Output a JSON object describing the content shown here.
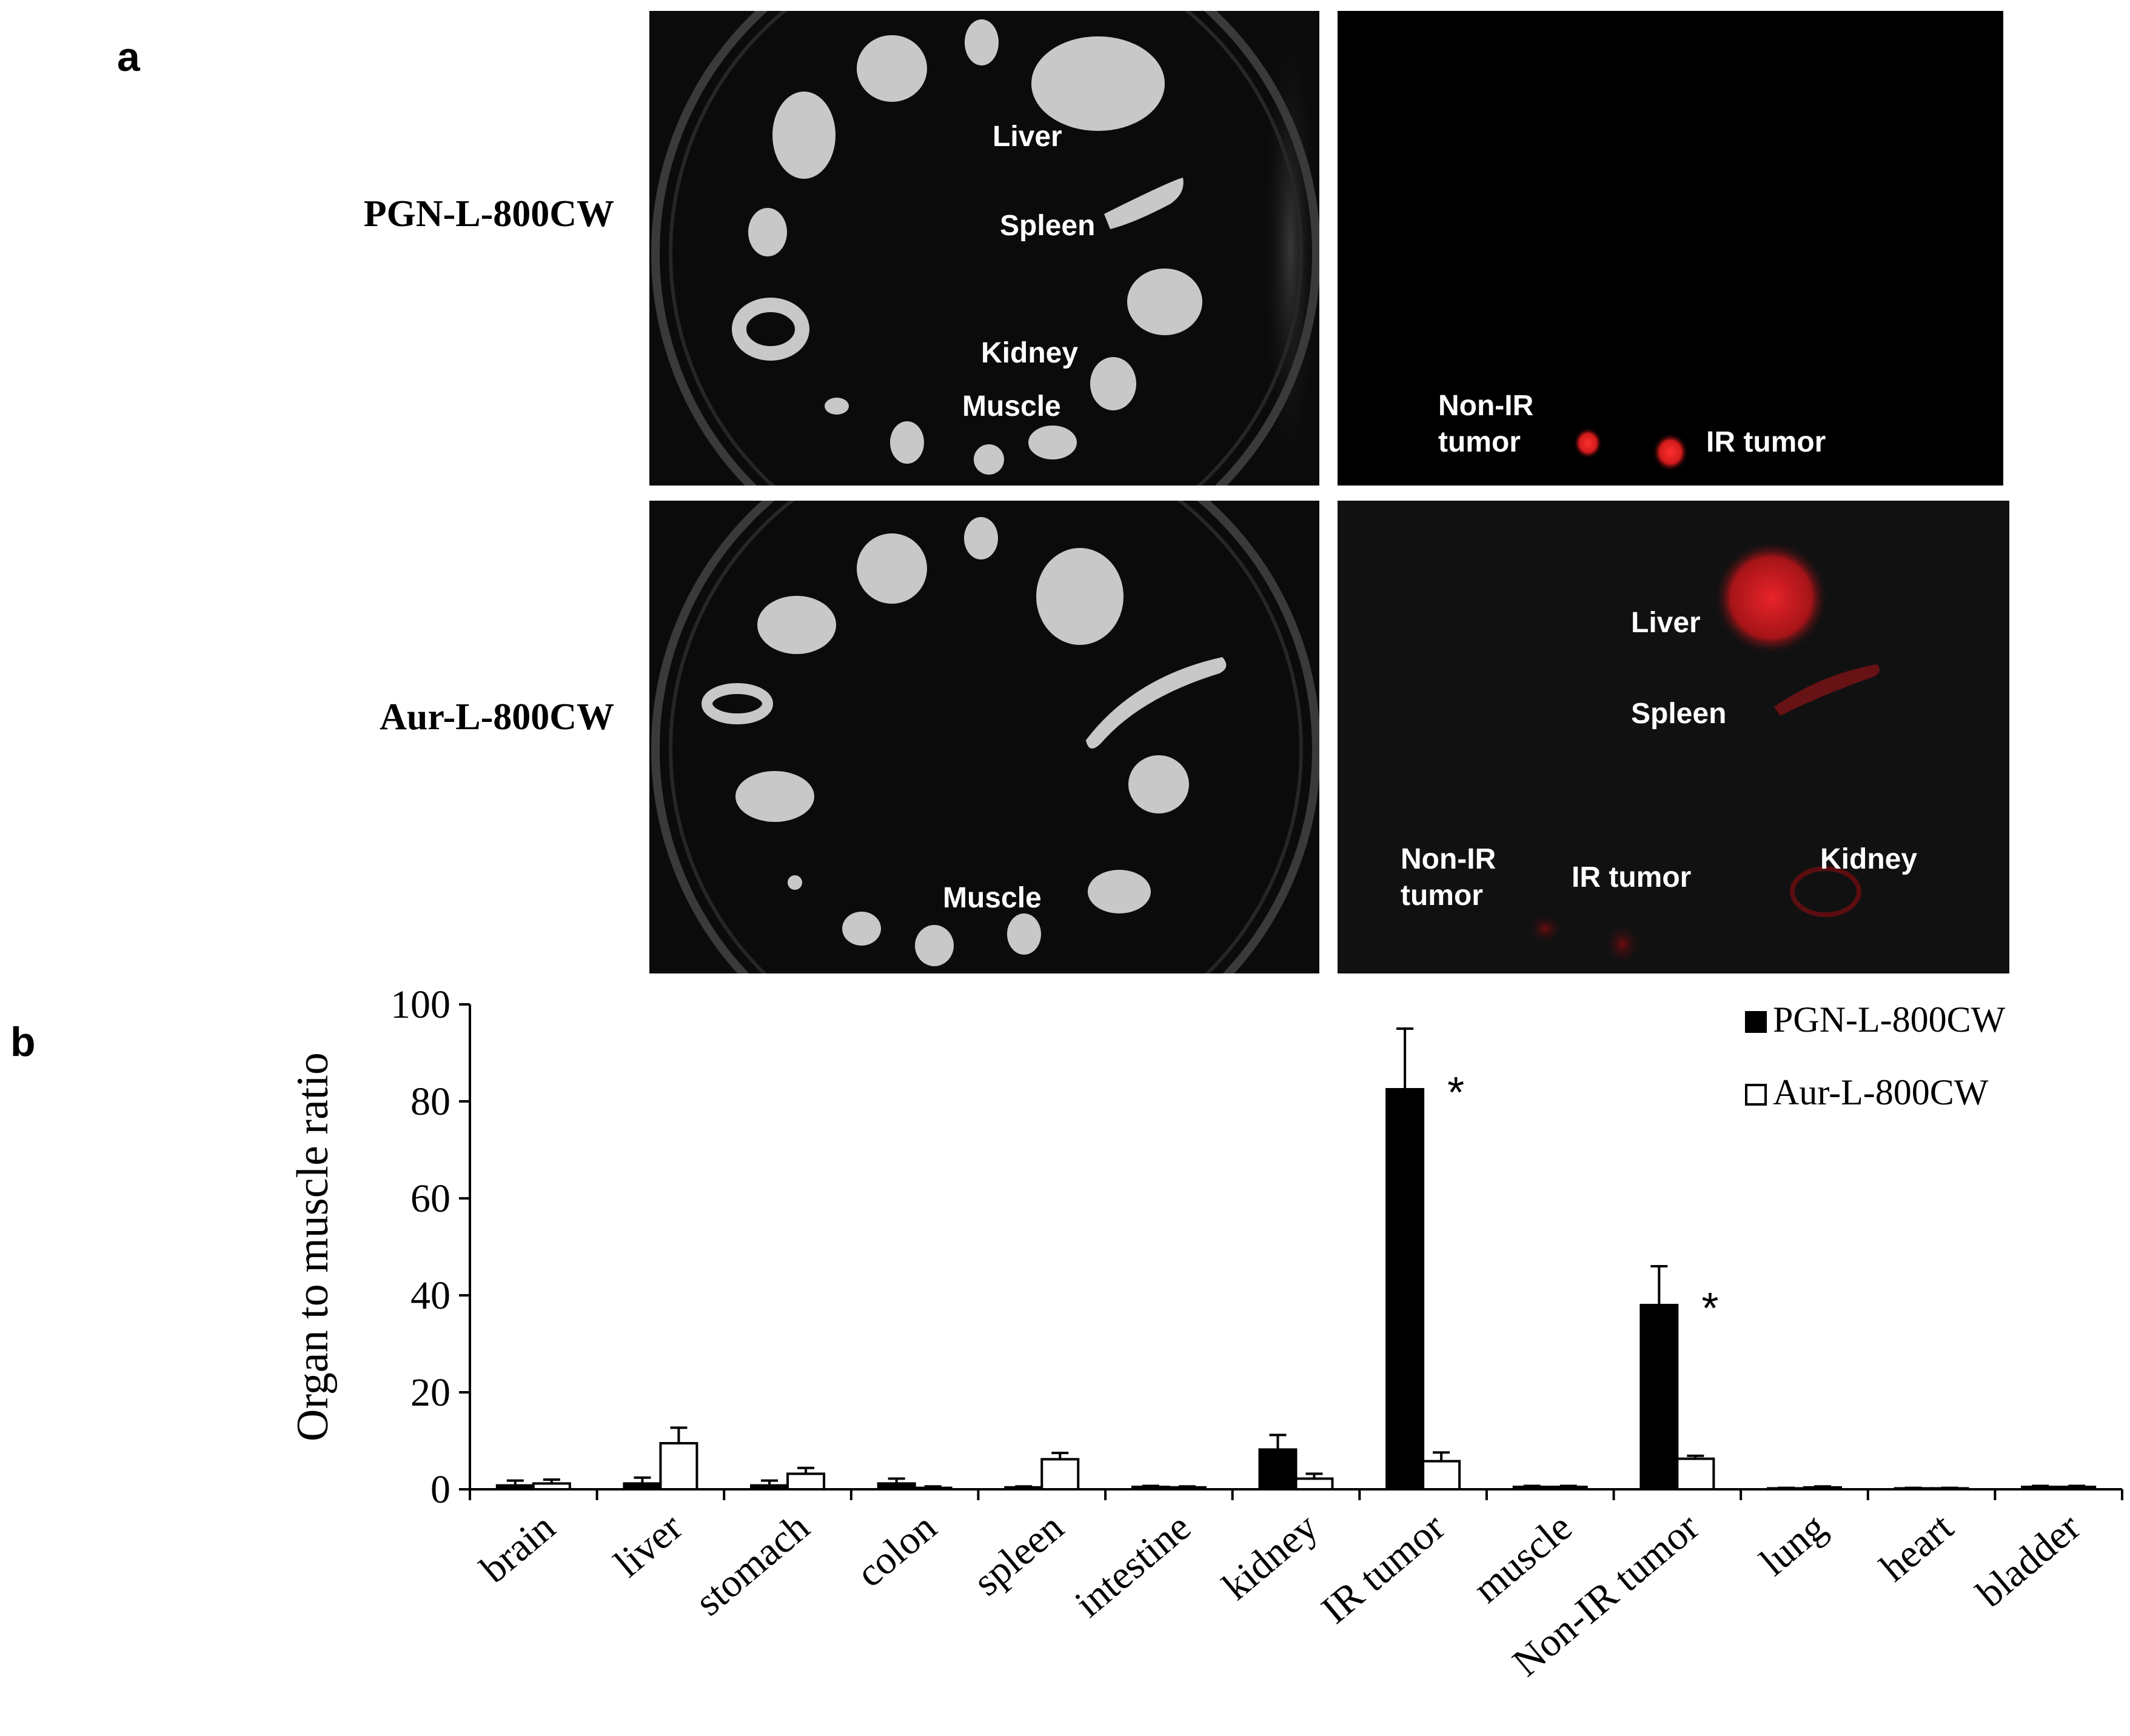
{
  "panels": {
    "a_label": "a",
    "b_label": "b"
  },
  "rows": [
    {
      "label": "PGN-L-800CW"
    },
    {
      "label": "Aur-L-800CW"
    }
  ],
  "photos": {
    "top_left": {
      "labels": [
        "Liver",
        "Spleen",
        "Kidney",
        "Muscle"
      ]
    },
    "top_right": {
      "labels": [
        "Non-IR\ntumor",
        "IR tumor"
      ]
    },
    "bottom_left": {
      "labels": [
        "Muscle"
      ]
    },
    "bottom_right": {
      "labels": [
        "Liver",
        "Spleen",
        "Non-IR\ntumor",
        "IR tumor",
        "Kidney"
      ]
    }
  },
  "colors": {
    "photo_dark": "#0b0b0b",
    "photo_black": "#000000",
    "fluor_red": "#e8242a",
    "organ_gray": "#c8c8c8",
    "bar_fill_1": "#000000",
    "bar_fill_2": "#ffffff"
  },
  "chart_data": {
    "type": "bar",
    "title": "",
    "xlabel": "",
    "ylabel": "Organ to muscle ratio",
    "ylim": [
      0,
      100
    ],
    "yticks": [
      0,
      20,
      40,
      60,
      80,
      100
    ],
    "categories": [
      "brain",
      "liver",
      "stomach",
      "colon",
      "spleen",
      "intestine",
      "kidney",
      "IR tumor",
      "muscle",
      "Non-IR tumor",
      "lung",
      "heart",
      "bladder"
    ],
    "series": [
      {
        "name": "PGN-L-800CW",
        "values": [
          0.8,
          1.2,
          0.8,
          1.2,
          0.4,
          0.5,
          8.2,
          82.5,
          0.5,
          38,
          0.2,
          0.2,
          0.5
        ],
        "errors": [
          1.0,
          1.2,
          1.0,
          1.0,
          0.2,
          0.2,
          3.0,
          12.5,
          0.2,
          8,
          0.1,
          0.1,
          0.2
        ]
      },
      {
        "name": "Aur-L-800CW",
        "values": [
          1.2,
          9.5,
          3.2,
          0.3,
          6.2,
          0.4,
          2.2,
          5.8,
          0.5,
          6.3,
          0.4,
          0.2,
          0.5
        ],
        "errors": [
          0.8,
          3.2,
          1.2,
          0.3,
          1.3,
          0.2,
          1.0,
          1.8,
          0.2,
          0.6,
          0.2,
          0.1,
          0.2
        ]
      }
    ],
    "annotations": [
      {
        "category": "IR tumor",
        "text": "*"
      },
      {
        "category": "Non-IR tumor",
        "text": "*"
      }
    ],
    "legend_position": "top-right",
    "grid": false
  }
}
